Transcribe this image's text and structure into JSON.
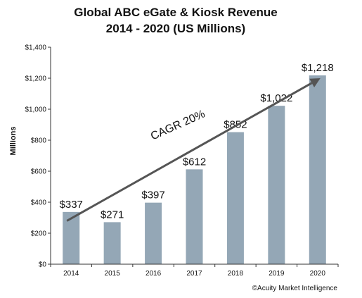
{
  "chart_data": {
    "type": "bar",
    "title_line1": "Global ABC eGate & Kiosk Revenue",
    "title_line2": "2014 - 2020 (US Millions)",
    "ylabel": "Millions",
    "xlabel": "",
    "categories": [
      "2014",
      "2015",
      "2016",
      "2017",
      "2018",
      "2019",
      "2020"
    ],
    "values": [
      337,
      271,
      397,
      612,
      852,
      1022,
      1218
    ],
    "data_labels": [
      "$337",
      "$271",
      "$397",
      "$612",
      "$852",
      "$1,022",
      "$1,218"
    ],
    "ylim": [
      0,
      1400
    ],
    "yticks": [
      0,
      200,
      400,
      600,
      800,
      1000,
      1200,
      1400
    ],
    "ytick_labels": [
      "$0",
      "$200",
      "$400",
      "$600",
      "$800",
      "$1,000",
      "$1,200",
      "$1,400"
    ],
    "grid": false,
    "bar_color": "#94a7b6",
    "annotation": "CAGR 20%",
    "trend_arrow": {
      "from": {
        "x": "2014",
        "y": 280
      },
      "to": {
        "x": "2020",
        "y": 1200
      },
      "color": "#555555"
    },
    "credit": "©Acuity Market Intelligence"
  }
}
